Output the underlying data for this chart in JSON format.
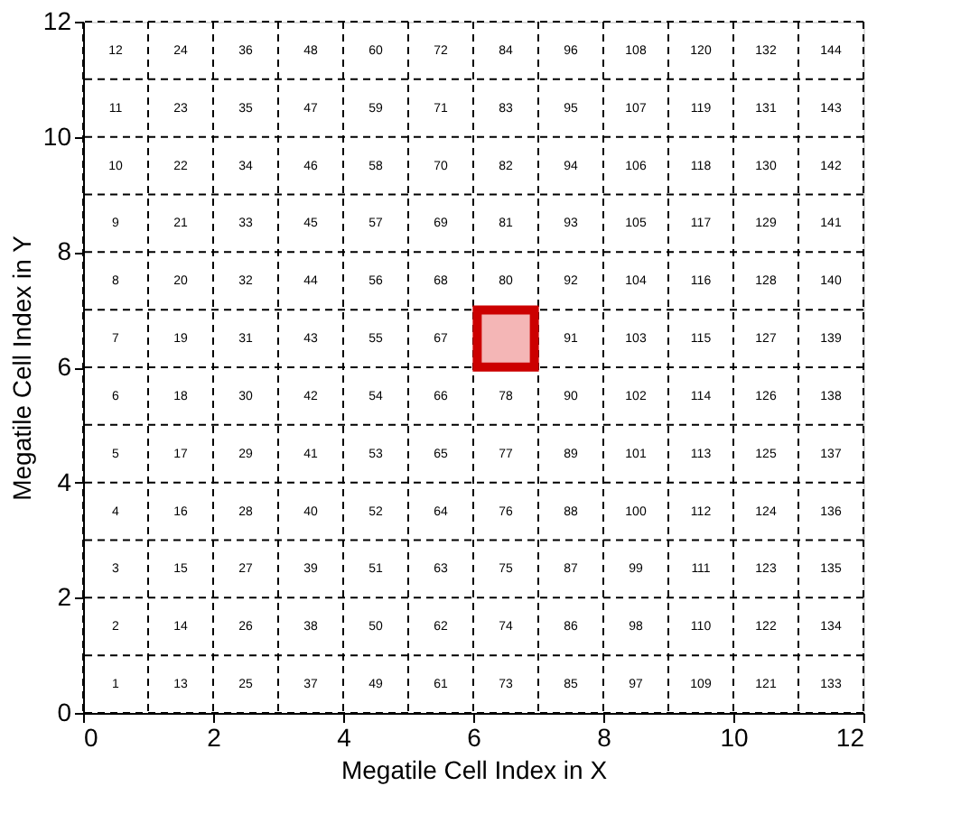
{
  "chart_data": {
    "type": "heatmap",
    "xlabel": "Megatile Cell Index in X",
    "ylabel": "Megatile Cell Index in Y",
    "xlim": [
      0,
      12
    ],
    "ylim": [
      0,
      12
    ],
    "xticks": [
      0,
      {
        "value": 1,
        "label": null
      },
      2,
      {
        "value": 3,
        "label": null
      },
      4,
      {
        "value": 5,
        "label": null
      },
      6,
      {
        "value": 7,
        "label": null
      },
      8,
      {
        "value": 9,
        "label": null
      },
      10,
      {
        "value": 11,
        "label": null
      },
      12
    ],
    "yticks": [
      0,
      {
        "value": 1,
        "label": null
      },
      2,
      {
        "value": 3,
        "label": null
      },
      4,
      {
        "value": 5,
        "label": null
      },
      6,
      {
        "value": 7,
        "label": null
      },
      8,
      {
        "value": 9,
        "label": null
      },
      10,
      {
        "value": 11,
        "label": null
      },
      12
    ],
    "grid": true,
    "line_style": "dashed",
    "data_labels": true,
    "cells": [
      [
        12,
        24,
        36,
        48,
        60,
        72,
        84,
        96,
        108,
        120,
        132,
        144
      ],
      [
        11,
        23,
        35,
        47,
        59,
        71,
        83,
        95,
        107,
        119,
        131,
        143
      ],
      [
        10,
        22,
        34,
        46,
        58,
        70,
        82,
        94,
        106,
        118,
        130,
        142
      ],
      [
        9,
        21,
        33,
        45,
        57,
        69,
        81,
        93,
        105,
        117,
        129,
        141
      ],
      [
        8,
        20,
        32,
        44,
        56,
        68,
        80,
        92,
        104,
        116,
        128,
        140
      ],
      [
        7,
        19,
        31,
        43,
        55,
        67,
        null,
        91,
        103,
        115,
        127,
        139
      ],
      [
        6,
        18,
        30,
        42,
        54,
        66,
        78,
        90,
        102,
        114,
        126,
        138
      ],
      [
        5,
        17,
        29,
        41,
        53,
        65,
        77,
        89,
        101,
        113,
        125,
        137
      ],
      [
        4,
        16,
        28,
        40,
        52,
        64,
        76,
        88,
        100,
        112,
        124,
        136
      ],
      [
        3,
        15,
        27,
        39,
        51,
        63,
        75,
        87,
        99,
        111,
        123,
        135
      ],
      [
        2,
        14,
        26,
        38,
        50,
        62,
        74,
        86,
        98,
        110,
        122,
        134
      ],
      [
        1,
        13,
        25,
        37,
        49,
        61,
        73,
        85,
        97,
        109,
        121,
        133
      ]
    ],
    "series": [
      {
        "type": "scatter",
        "marker": "square",
        "color": "#cc0000",
        "x": [
          6.5
        ],
        "values": [
          6.5
        ],
        "value_labels": [
          null
        ]
      }
    ]
  }
}
